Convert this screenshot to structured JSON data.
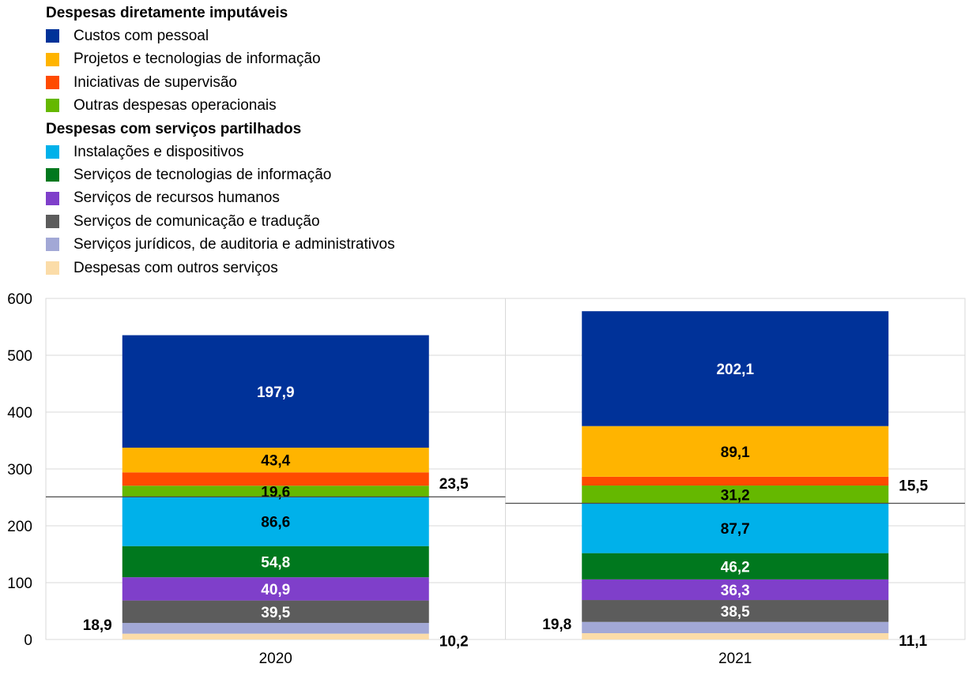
{
  "legend": {
    "group1_title": "Despesas diretamente imputáveis",
    "group2_title": "Despesas com serviços partilhados"
  },
  "chart_data": {
    "type": "bar",
    "stacked": true,
    "categories": [
      "2020",
      "2021"
    ],
    "ylim": [
      0,
      600
    ],
    "yticks": [
      0,
      100,
      200,
      300,
      400,
      500,
      600
    ],
    "grid": true,
    "legend_position": "top-left",
    "xlabel": "",
    "ylabel": "",
    "series": [
      {
        "name": "Despesas com outros serviços",
        "values": [
          10.2,
          11.1
        ],
        "color": "#FBDCA8",
        "group": "Despesas com serviços partilhados",
        "label_color": "#000000",
        "label_side": "right"
      },
      {
        "name": "Serviços jurídicos, de auditoria e administrativos",
        "values": [
          18.9,
          19.8
        ],
        "color": "#A2A8D6",
        "group": "Despesas com serviços partilhados",
        "label_color": "#000000",
        "label_side": "left"
      },
      {
        "name": "Serviços de comunicação e tradução",
        "values": [
          39.5,
          38.5
        ],
        "color": "#5C5C5C",
        "group": "Despesas com serviços partilhados",
        "label_color": "#ffffff",
        "label_side": "inside"
      },
      {
        "name": "Serviços de recursos humanos",
        "values": [
          40.9,
          36.3
        ],
        "color": "#7F3FCA",
        "group": "Despesas com serviços partilhados",
        "label_color": "#ffffff",
        "label_side": "inside"
      },
      {
        "name": "Serviços de tecnologias de informação",
        "values": [
          54.8,
          46.2
        ],
        "color": "#00781E",
        "group": "Despesas com serviços partilhados",
        "label_color": "#ffffff",
        "label_side": "inside"
      },
      {
        "name": "Instalações e dispositivos",
        "values": [
          86.6,
          87.7
        ],
        "color": "#00B1EA",
        "group": "Despesas com serviços partilhados",
        "label_color": "#000000",
        "label_side": "inside"
      },
      {
        "name": "Outras despesas operacionais",
        "values": [
          19.6,
          31.2
        ],
        "color": "#65B800",
        "group": "Despesas diretamente imputáveis",
        "label_color": "#000000",
        "label_side": "inside"
      },
      {
        "name": "Iniciativas de supervisão",
        "values": [
          23.5,
          15.5
        ],
        "color": "#FF4B00",
        "group": "Despesas diretamente imputáveis",
        "label_color": "#000000",
        "label_side": "right"
      },
      {
        "name": "Projetos e tecnologias de informação",
        "values": [
          43.4,
          89.1
        ],
        "color": "#FFB400",
        "group": "Despesas diretamente imputáveis",
        "label_color": "#000000",
        "label_side": "inside"
      },
      {
        "name": "Custos com pessoal",
        "values": [
          197.9,
          202.1
        ],
        "color": "#003299",
        "group": "Despesas diretamente imputáveis",
        "label_color": "#ffffff",
        "label_side": "inside"
      }
    ],
    "legend_order": [
      "Custos com pessoal",
      "Projetos e tecnologias de informação",
      "Iniciativas de supervisão",
      "Outras despesas operacionais",
      "Instalações e dispositivos",
      "Serviços de tecnologias de informação",
      "Serviços de recursos humanos",
      "Serviços de comunicação e tradução",
      "Serviços jurídicos, de auditoria e administrativos",
      "Despesas com outros serviços"
    ],
    "separator_after_series": "Instalações e dispositivos"
  }
}
